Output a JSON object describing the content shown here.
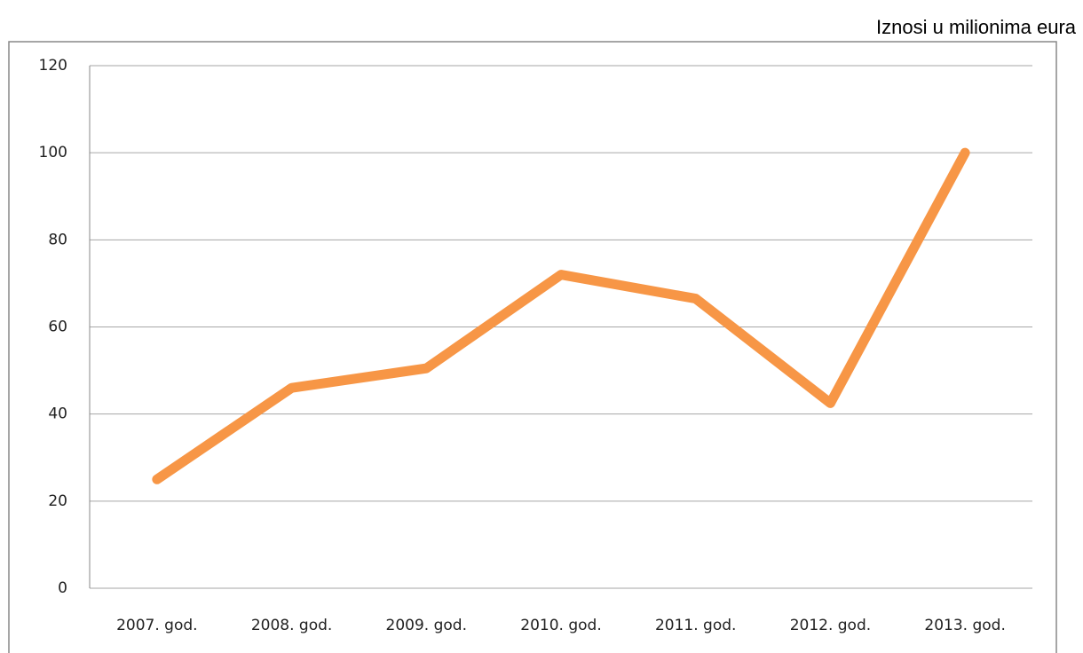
{
  "chart_data": {
    "type": "line",
    "annotation": "Iznosi u milionima eura",
    "categories": [
      "2007. god.",
      "2008. god.",
      "2009. god.",
      "2010. god.",
      "2011. god.",
      "2012. god.",
      "2013. god."
    ],
    "series": [
      {
        "name": null,
        "color": "#f79646",
        "values": [
          25,
          46,
          50.5,
          72,
          66.5,
          42.5,
          100
        ]
      }
    ],
    "ylim": [
      0,
      120
    ],
    "yticks": [
      0,
      20,
      40,
      60,
      80,
      100,
      120
    ],
    "grid": true
  }
}
